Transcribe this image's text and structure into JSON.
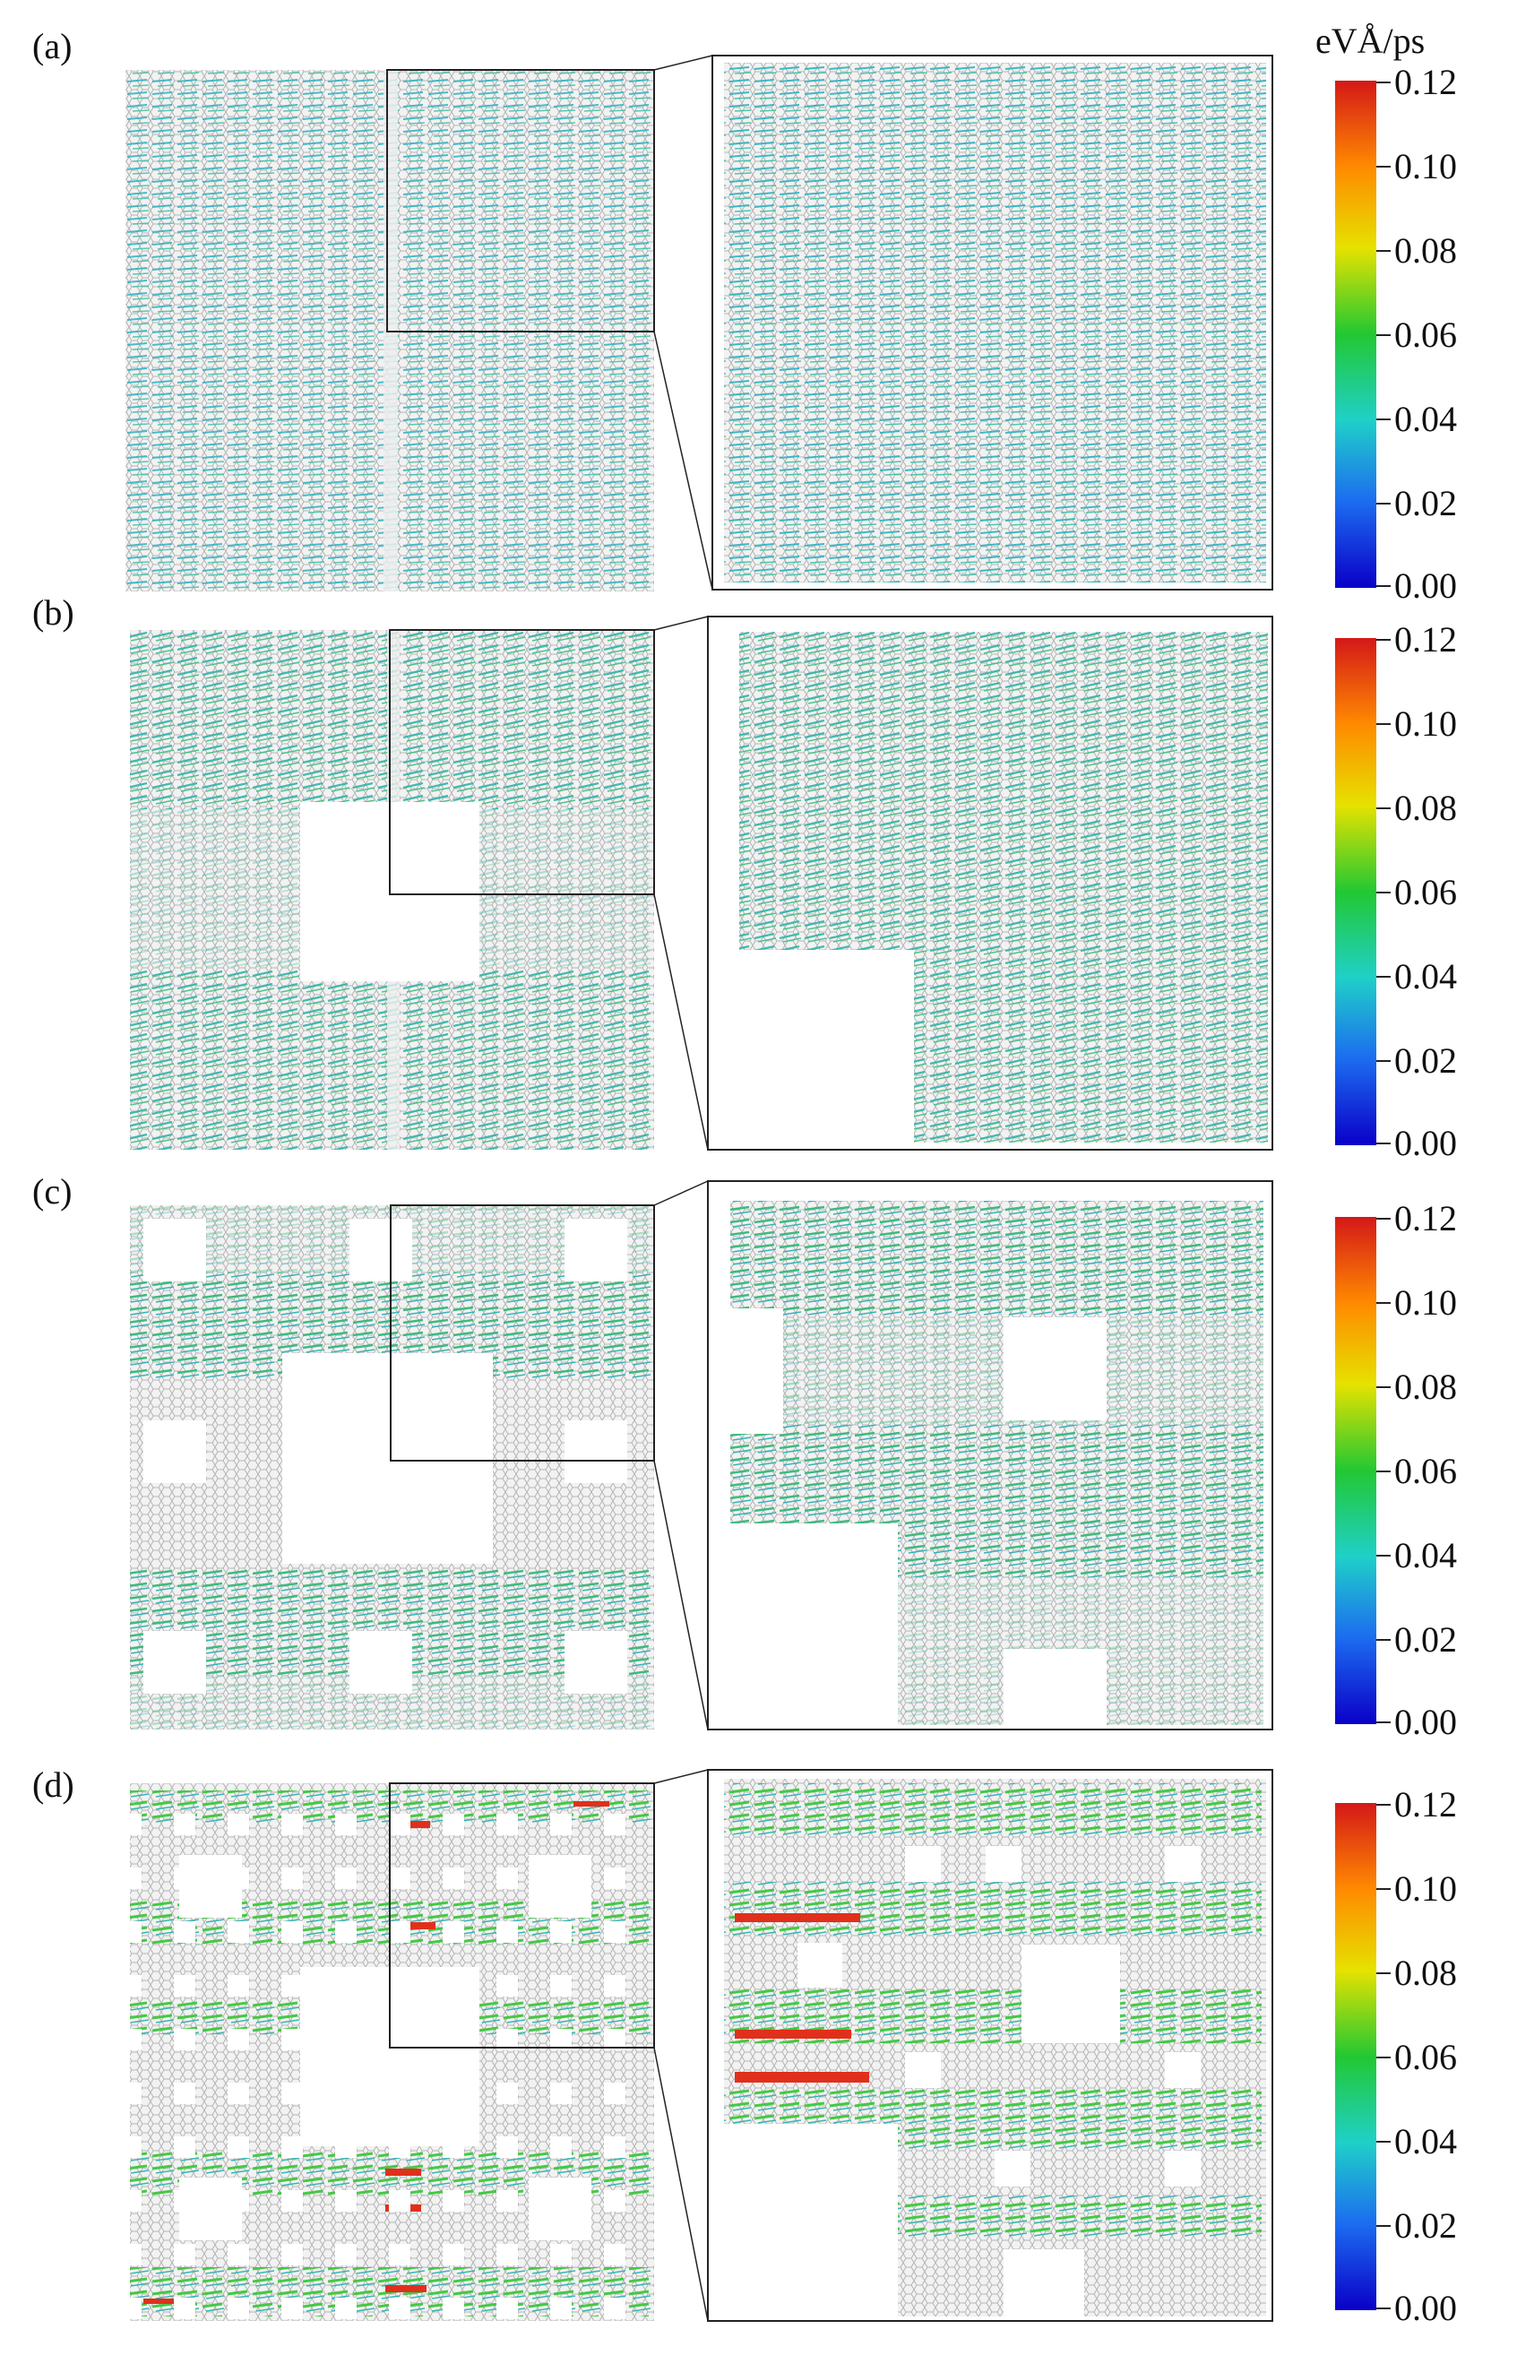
{
  "figure": {
    "colorbar": {
      "unit": "eVÅ/ps",
      "ticks": [
        "0.12",
        "0.10",
        "0.08",
        "0.06",
        "0.04",
        "0.02",
        "0.00"
      ],
      "colors": [
        "#d41818",
        "#ff8a00",
        "#e6e200",
        "#22c832",
        "#1fd0c8",
        "#1c6cf0",
        "#0a00c8"
      ]
    },
    "panels": [
      {
        "id": "a",
        "label": "(a)",
        "holes": "none",
        "level": 1
      },
      {
        "id": "b",
        "label": "(b)",
        "holes": "single",
        "level": 2
      },
      {
        "id": "c",
        "label": "(c)",
        "holes": "carpet-2",
        "level": 3
      },
      {
        "id": "d",
        "label": "(d)",
        "holes": "carpet-3",
        "level": 4
      }
    ],
    "colors": {
      "lattice": "#b7b7b7",
      "flux_low": "#2fb8c4",
      "flux_mid": "#35c05a",
      "flux_high": "#e0301c"
    }
  }
}
